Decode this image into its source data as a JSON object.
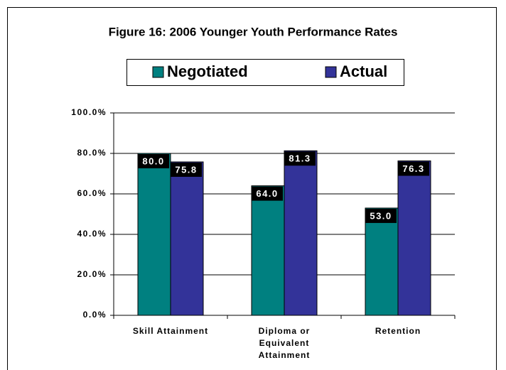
{
  "chart_data": {
    "type": "bar",
    "title": "Figure 16: 2006 Younger Youth Performance Rates",
    "categories": [
      "Skill Attainment",
      "Diploma or Equivalent Attainment",
      "Retention"
    ],
    "series": [
      {
        "name": "Negotiated",
        "color": "#008080",
        "values": [
          80.0,
          64.0,
          53.0
        ],
        "value_labels": [
          "80.0",
          "64.0",
          "53.0"
        ]
      },
      {
        "name": "Actual",
        "color": "#333399",
        "values": [
          75.8,
          81.3,
          76.3
        ],
        "value_labels": [
          "75.8",
          "81.3",
          "76.3"
        ]
      }
    ],
    "ylim": [
      0,
      100
    ],
    "yticks": [
      {
        "value": 0,
        "label": "0.0%"
      },
      {
        "value": 20,
        "label": "20.0%"
      },
      {
        "value": 40,
        "label": "40.0%"
      },
      {
        "value": 60,
        "label": "60.0%"
      },
      {
        "value": 80,
        "label": "80.0%"
      },
      {
        "value": 100,
        "label": "100.0%"
      }
    ],
    "grid": true,
    "legend": "top"
  }
}
